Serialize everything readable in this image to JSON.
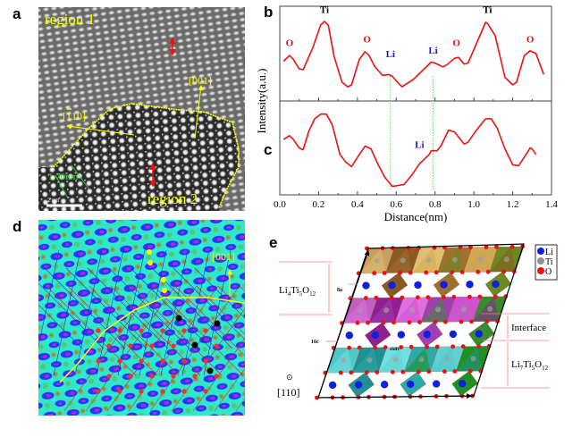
{
  "panels": {
    "a": {
      "label": "a",
      "region1": "region 1",
      "region2": "region 2",
      "dir_001": "[001]",
      "dir_110": "[1̅ 10]",
      "dir_110_bar": "1",
      "dir_110_rest": "10]",
      "dir_110_open": "[",
      "spacing": "1.70nm",
      "scale_bar": "2 nm",
      "colors": {
        "annotation": "#ffff00",
        "spacing": "#33dd33",
        "arrow": "#ee1111"
      }
    },
    "b": {
      "label": "b"
    },
    "c": {
      "label": "c"
    },
    "d": {
      "label": "d",
      "dir_001": "[001]",
      "colors": {
        "background": "#30e8c8",
        "blue": "#2535ff",
        "magenta": "#c020e0",
        "red": "#ee3030"
      }
    },
    "e": {
      "label": "e",
      "phase_top": {
        "base": "Li",
        "s1": "4",
        "m": "Ti",
        "s2": "5",
        "m2": "O",
        "s3": "12"
      },
      "phase_bottom": {
        "base": "Li",
        "s1": "7",
        "m": "Ti",
        "s2": "5",
        "m2": "O",
        "s3": "12"
      },
      "interface": "Interface",
      "site_8a": "8a",
      "site_16c": "16c",
      "shift": "shift",
      "view_dir": "[110]",
      "view_symbol": "⊙",
      "legend": [
        {
          "label": "Li",
          "color": "#1020e0"
        },
        {
          "label": "Ti",
          "color": "#909090"
        },
        {
          "label": "O",
          "color": "#ee1010"
        }
      ]
    }
  },
  "chart_data": {
    "type": "line",
    "xlabel": "Distance(nm)",
    "ylabel": "Intensity(a.u.)",
    "xlim": [
      0.0,
      1.4
    ],
    "xticks": [
      "0.0",
      "0.2",
      "0.4",
      "0.6",
      "0.8",
      "1.0",
      "1.2",
      "1.4"
    ],
    "grid": false,
    "line_color": "#ee1111",
    "guide_lines_x": [
      0.57,
      0.79
    ],
    "guide_color": "#44cc44",
    "series": [
      {
        "panel": "b",
        "x": [
          0.02,
          0.05,
          0.07,
          0.1,
          0.12,
          0.17,
          0.21,
          0.23,
          0.25,
          0.28,
          0.32,
          0.35,
          0.37,
          0.41,
          0.44,
          0.46,
          0.49,
          0.53,
          0.56,
          0.58,
          0.61,
          0.63,
          0.69,
          0.74,
          0.78,
          0.8,
          0.84,
          0.86,
          0.9,
          0.92,
          0.95,
          0.97,
          1.01,
          1.06,
          1.07,
          1.11,
          1.16,
          1.2,
          1.22,
          1.26,
          1.29,
          1.32,
          1.36
        ],
        "y": [
          0.42,
          0.48,
          0.44,
          0.34,
          0.33,
          0.56,
          0.8,
          0.84,
          0.8,
          0.47,
          0.2,
          0.15,
          0.17,
          0.44,
          0.52,
          0.48,
          0.36,
          0.27,
          0.28,
          0.26,
          0.19,
          0.15,
          0.23,
          0.33,
          0.41,
          0.4,
          0.36,
          0.38,
          0.45,
          0.46,
          0.39,
          0.4,
          0.59,
          0.83,
          0.82,
          0.69,
          0.25,
          0.17,
          0.2,
          0.48,
          0.53,
          0.5,
          0.28
        ],
        "annotations": [
          {
            "text": "O",
            "x": 0.05,
            "y": 0.58,
            "color": "#dd1111"
          },
          {
            "text": "Ti",
            "x": 0.23,
            "y": 0.93,
            "color": "#000000"
          },
          {
            "text": "O",
            "x": 0.45,
            "y": 0.62,
            "color": "#dd1111"
          },
          {
            "text": "Li",
            "x": 0.57,
            "y": 0.46,
            "color": "#1a1acc"
          },
          {
            "text": "Li",
            "x": 0.79,
            "y": 0.5,
            "color": "#1a1acc"
          },
          {
            "text": "O",
            "x": 0.91,
            "y": 0.58,
            "color": "#dd1111"
          },
          {
            "text": "Ti",
            "x": 1.07,
            "y": 0.93,
            "color": "#000000"
          },
          {
            "text": "O",
            "x": 1.29,
            "y": 0.62,
            "color": "#dd1111"
          }
        ]
      },
      {
        "panel": "c",
        "x": [
          0.02,
          0.05,
          0.07,
          0.1,
          0.12,
          0.15,
          0.18,
          0.21,
          0.24,
          0.27,
          0.31,
          0.34,
          0.37,
          0.41,
          0.44,
          0.47,
          0.5,
          0.54,
          0.58,
          0.61,
          0.64,
          0.68,
          0.72,
          0.77,
          0.78,
          0.81,
          0.83,
          0.87,
          0.9,
          0.95,
          0.97,
          1.01,
          1.06,
          1.09,
          1.12,
          1.16,
          1.2,
          1.23,
          1.25,
          1.29,
          1.3,
          1.32
        ],
        "y": [
          0.59,
          0.63,
          0.59,
          0.5,
          0.48,
          0.68,
          0.81,
          0.86,
          0.86,
          0.75,
          0.43,
          0.35,
          0.3,
          0.43,
          0.52,
          0.49,
          0.35,
          0.19,
          0.09,
          0.1,
          0.11,
          0.21,
          0.33,
          0.43,
          0.47,
          0.47,
          0.52,
          0.69,
          0.67,
          0.54,
          0.56,
          0.68,
          0.81,
          0.81,
          0.71,
          0.49,
          0.32,
          0.31,
          0.37,
          0.5,
          0.49,
          0.43
        ],
        "annotations": [
          {
            "text": "Li",
            "x": 0.72,
            "y": 0.5,
            "color": "#1a1acc"
          }
        ]
      }
    ]
  }
}
